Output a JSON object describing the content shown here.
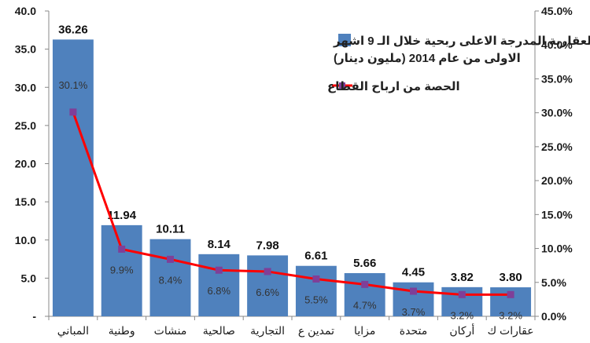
{
  "chart_data": {
    "type": "bar",
    "categories": [
      "المباني",
      "وطنية",
      "منشات",
      "صالحية",
      "التجارية",
      "تمدين ع",
      "مزايا",
      "متحدة",
      "أركان",
      "عقارات ك"
    ],
    "series": [
      {
        "name": "الشركات العقارية المدرجة الاعلى ربحية خلال الـ 9 اشهر الاولى من عام 2014 (مليون دينار)",
        "type": "bar",
        "axis": "left",
        "color": "#4f81bd",
        "values": [
          36.26,
          11.94,
          10.11,
          8.14,
          7.98,
          6.61,
          5.66,
          4.45,
          3.82,
          3.8
        ],
        "labels": [
          "36.26",
          "11.94",
          "10.11",
          "8.14",
          "7.98",
          "6.61",
          "5.66",
          "4.45",
          "3.82",
          "3.80"
        ]
      },
      {
        "name": "الحصة من ارباح القطاع",
        "type": "line",
        "axis": "right",
        "color": "#ff0000",
        "marker_color": "#7f3f98",
        "values": [
          30.1,
          9.9,
          8.4,
          6.8,
          6.6,
          5.5,
          4.7,
          3.7,
          3.2,
          3.2
        ],
        "labels": [
          "30.1%",
          "9.9%",
          "8.4%",
          "6.8%",
          "6.6%",
          "5.5%",
          "4.7%",
          "3.7%",
          "3.2%",
          "3.2%"
        ]
      }
    ],
    "y_left": {
      "ylim": [
        0,
        40
      ],
      "ticks": [
        "-",
        "5.0",
        "10.0",
        "15.0",
        "20.0",
        "25.0",
        "30.0",
        "35.0",
        "40.0"
      ]
    },
    "y_right": {
      "ylim": [
        0,
        45
      ],
      "ticks": [
        "0.0%",
        "5.0%",
        "10.0%",
        "15.0%",
        "20.0%",
        "25.0%",
        "30.0%",
        "35.0%",
        "40.0%",
        "45.0%"
      ]
    },
    "grid": false,
    "legend_position": "top-right",
    "legend": [
      {
        "text_line1": "الشركات العقارية المدرجة الاعلى ربحية خلال الـ 9 اشهر",
        "text_line2": "الاولى من عام 2014 (مليون دينار)",
        "kind": "bar",
        "color": "#4f81bd"
      },
      {
        "text_line1": "الحصة من ارباح القطاع",
        "kind": "line",
        "color": "#ff0000"
      }
    ]
  }
}
